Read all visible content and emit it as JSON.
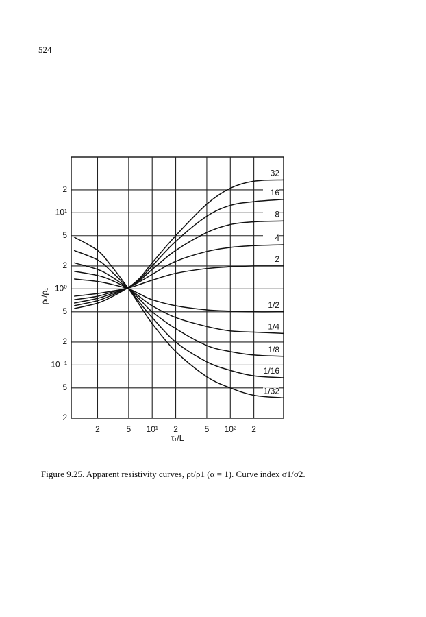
{
  "page_number": "524",
  "caption": "Figure 9.25. Apparent resistivity curves, ρt/ρ1 (α = 1). Curve index σ1/σ2.",
  "chart_data": {
    "type": "line",
    "log_x": true,
    "log_y": true,
    "grid": true,
    "xlabel": "τ₁/L",
    "ylabel": "ρₜ/ρ₁",
    "xlim": [
      0.92,
      480
    ],
    "ylim": [
      0.02,
      54
    ],
    "xticks": [
      2,
      5,
      {
        "value": 10,
        "label": "10¹"
      },
      {
        "value": 20,
        "label": "2"
      },
      {
        "value": 50,
        "label": "5"
      },
      {
        "value": 100,
        "label": "10²"
      },
      {
        "value": 200,
        "label": "2"
      }
    ],
    "yticks": [
      {
        "value": 20,
        "label": "2"
      },
      {
        "value": 10,
        "label": "10¹"
      },
      5,
      2,
      {
        "value": 1,
        "label": "10⁰"
      },
      {
        "value": 0.5,
        "label": "5"
      },
      {
        "value": 0.2,
        "label": "2"
      },
      {
        "value": 0.1,
        "label": "10⁻¹"
      },
      {
        "value": 0.05,
        "label": "5"
      },
      {
        "value": 0.02,
        "label": "2"
      }
    ],
    "x": [
      1,
      2,
      3,
      5,
      7,
      10,
      20,
      50,
      100,
      200,
      480
    ],
    "series": [
      {
        "name": "32",
        "color": "#111111",
        "values": [
          0.55,
          0.65,
          0.78,
          1.05,
          1.4,
          2.2,
          5,
          13,
          21,
          26,
          27
        ]
      },
      {
        "name": "16",
        "color": "#111111",
        "values": [
          0.6,
          0.7,
          0.82,
          1.05,
          1.35,
          2,
          4.2,
          9,
          12.5,
          14,
          15
        ]
      },
      {
        "name": "8",
        "color": "#111111",
        "values": [
          0.65,
          0.75,
          0.86,
          1.05,
          1.3,
          1.8,
          3.2,
          5.5,
          7,
          7.6,
          7.8
        ]
      },
      {
        "name": "4",
        "color": "#111111",
        "values": [
          0.72,
          0.8,
          0.9,
          1.05,
          1.25,
          1.55,
          2.3,
          3.1,
          3.5,
          3.7,
          3.8
        ]
      },
      {
        "name": "2",
        "color": "#111111",
        "values": [
          0.8,
          0.87,
          0.93,
          1.03,
          1.15,
          1.3,
          1.6,
          1.85,
          1.95,
          2,
          2
        ]
      },
      {
        "name": "1/2",
        "color": "#111111",
        "values": [
          1.35,
          1.25,
          1.15,
          1.0,
          0.85,
          0.72,
          0.6,
          0.53,
          0.51,
          0.5,
          0.5
        ]
      },
      {
        "name": "1/4",
        "color": "#111111",
        "values": [
          1.7,
          1.5,
          1.3,
          1.0,
          0.78,
          0.6,
          0.42,
          0.32,
          0.28,
          0.27,
          0.26
        ]
      },
      {
        "name": "1/8",
        "color": "#111111",
        "values": [
          2.2,
          1.8,
          1.45,
          1.0,
          0.72,
          0.5,
          0.3,
          0.18,
          0.15,
          0.135,
          0.13
        ]
      },
      {
        "name": "1/16",
        "color": "#111111",
        "values": [
          3.2,
          2.4,
          1.7,
          1.0,
          0.65,
          0.42,
          0.2,
          0.11,
          0.085,
          0.072,
          0.068
        ]
      },
      {
        "name": "1/32",
        "color": "#111111",
        "values": [
          4.8,
          3.2,
          2,
          1.0,
          0.6,
          0.35,
          0.15,
          0.07,
          0.05,
          0.04,
          0.037
        ]
      }
    ]
  }
}
